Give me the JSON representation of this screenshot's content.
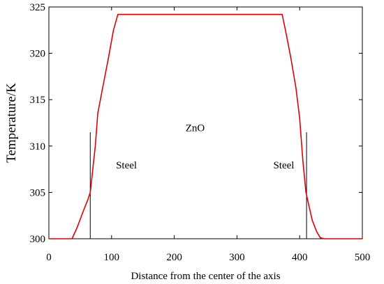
{
  "chart_data": {
    "type": "line",
    "xlabel": "Distance from the center of the axis",
    "ylabel": "Temperature/K",
    "xlim": [
      0,
      500
    ],
    "ylim": [
      300,
      325
    ],
    "xticks": [
      0,
      100,
      200,
      300,
      400,
      500
    ],
    "yticks": [
      300,
      305,
      310,
      315,
      320,
      325
    ],
    "grid": false,
    "series": [
      {
        "color": "#e00000",
        "x": [
          0,
          37,
          45,
          55,
          62,
          66,
          70,
          74,
          78,
          85,
          95,
          103,
          110,
          200,
          300,
          372,
          378,
          386,
          394,
          400,
          405,
          410,
          415,
          420,
          427,
          433,
          440,
          500
        ],
        "y": [
          300.0,
          300.0,
          301.2,
          303.0,
          304.2,
          305.0,
          307.5,
          310.0,
          313.5,
          316.0,
          319.5,
          322.5,
          324.2,
          324.2,
          324.2,
          324.2,
          322.3,
          319.5,
          316.3,
          313.0,
          308.5,
          305.0,
          303.5,
          302.0,
          300.8,
          300.1,
          300.0,
          300.0
        ]
      }
    ],
    "markers": [
      {
        "x": 66,
        "y_from": 300,
        "y_to": 311.5
      },
      {
        "x": 411,
        "y_from": 300,
        "y_to": 311.5
      }
    ],
    "annotations": [
      {
        "text": "ZnO",
        "x": 218,
        "y": 311.6
      },
      {
        "text": "Steel",
        "x": 107,
        "y": 307.6
      },
      {
        "text": "Steel",
        "x": 358,
        "y": 307.6
      }
    ]
  }
}
